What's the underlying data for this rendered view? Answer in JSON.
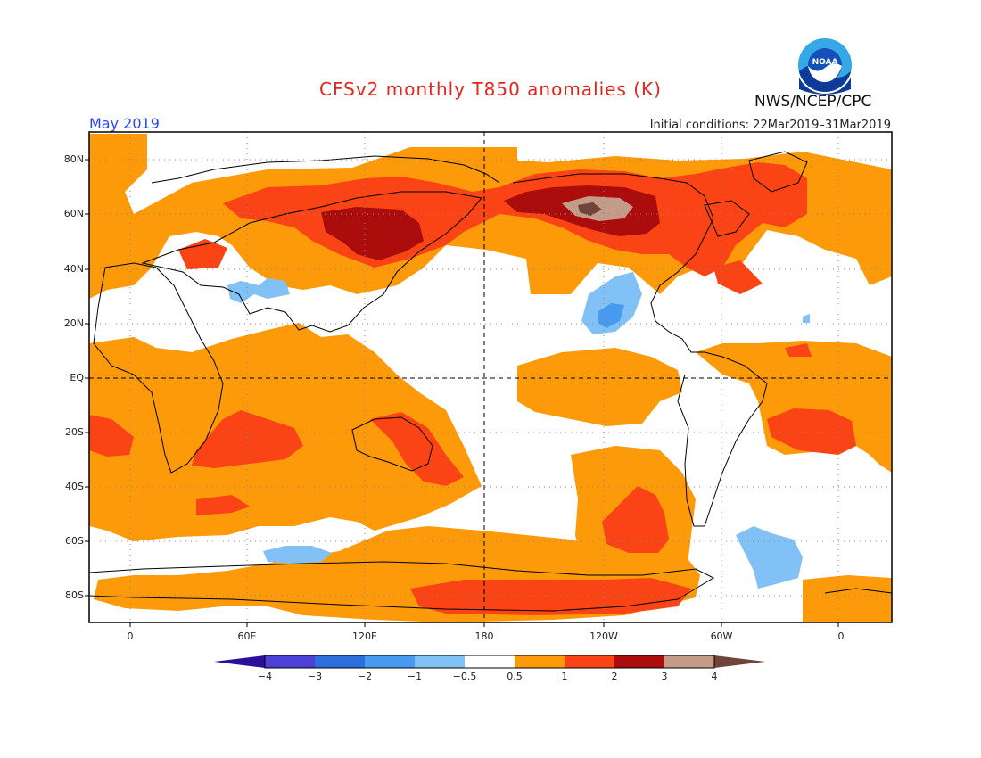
{
  "header": {
    "title": "CFSv2 monthly T850 anomalies (K)",
    "org": "NWS/NCEP/CPC",
    "period": "May 2019",
    "initial_conditions": "Initial conditions: 22Mar2019–31Mar2019",
    "logo_text": "NOAA"
  },
  "axes": {
    "lat_labels": [
      "80N",
      "60N",
      "40N",
      "20N",
      "EQ",
      "20S",
      "40S",
      "60S",
      "80S"
    ],
    "lat_values": [
      80,
      60,
      40,
      20,
      0,
      -20,
      -40,
      -60,
      -80
    ],
    "lon_labels": [
      "0",
      "60E",
      "120E",
      "180",
      "120W",
      "60W",
      "0"
    ],
    "lon_values": [
      0,
      60,
      120,
      180,
      240,
      300,
      360
    ],
    "lon_range": [
      -20,
      375
    ],
    "lat_range": [
      -90,
      90
    ],
    "grid": "dotted"
  },
  "colorbar": {
    "ticks": [
      "−4",
      "−3",
      "−2",
      "−1",
      "−0.5",
      "0.5",
      "1",
      "2",
      "3",
      "4"
    ],
    "colors": [
      "#2a0f9a",
      "#4d40d6",
      "#2c6fdc",
      "#479af0",
      "#82c1f5",
      "#ffffff",
      "#fc9a0a",
      "#fa4415",
      "#aa0d0c",
      "#c49a88",
      "#70443a"
    ]
  }
}
